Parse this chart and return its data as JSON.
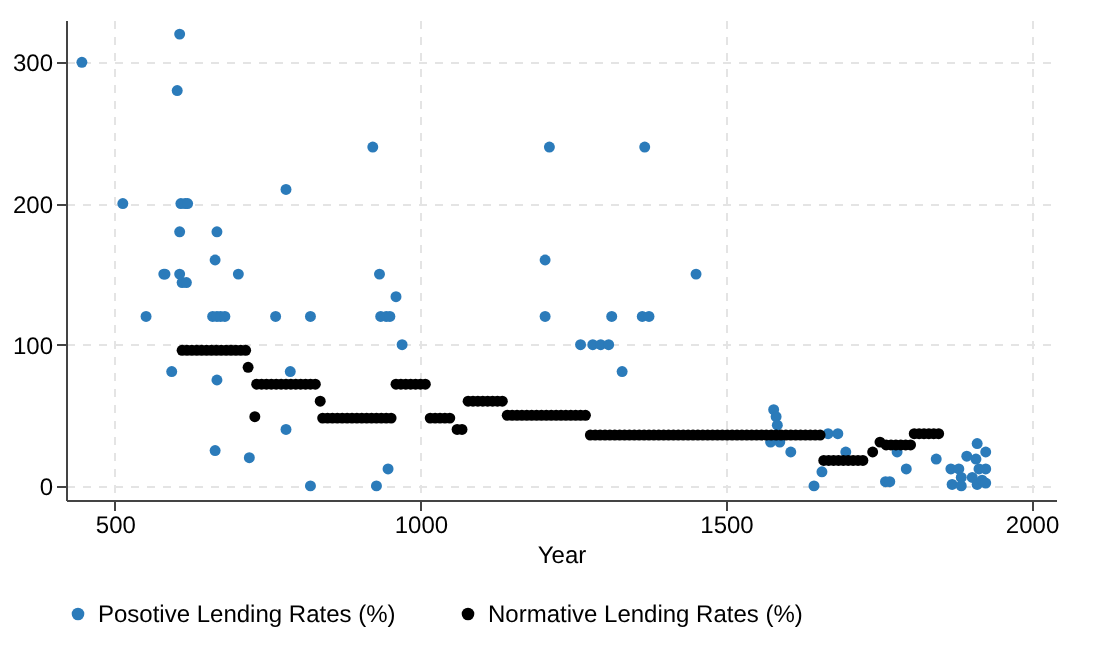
{
  "chart_data": {
    "type": "scatter",
    "xlabel": "Year",
    "xlim": [
      420,
      2040
    ],
    "xticks": [
      500,
      1000,
      1500,
      2000
    ],
    "ylim": [
      -10,
      330
    ],
    "yticks": [
      0,
      100,
      200,
      300
    ],
    "grid": true,
    "legend": "bottom",
    "marker": "circle",
    "series": [
      {
        "name": "Posotive Lending Rates (%)",
        "color": "#2b7bba",
        "x": [
          446,
          513,
          551,
          580,
          582,
          593,
          602,
          606,
          606,
          606,
          610,
          617,
          608,
          615,
          619,
          664,
          667,
          660,
          667,
          673,
          680,
          667,
          664,
          702,
          720,
          763,
          780,
          780,
          787,
          820,
          820,
          922,
          928,
          933,
          935,
          944,
          950,
          947,
          960,
          970,
          1211,
          1204,
          1204,
          1262,
          1282,
          1295,
          1308,
          1313,
          1330,
          1367,
          1363,
          1374,
          1451,
          1578,
          1582,
          1584,
          1573,
          1588,
          1606,
          1644,
          1657,
          1667,
          1683,
          1696,
          1761,
          1768,
          1780,
          1795,
          1844,
          1868,
          1870,
          1881,
          1885,
          1885,
          1894,
          1903,
          1909,
          1911,
          1914,
          1911,
          1919,
          1925,
          1925,
          1925
        ],
        "values": [
          300,
          200,
          120,
          150,
          150,
          81,
          280,
          320,
          180,
          150,
          144,
          144,
          200,
          200,
          200,
          160,
          180,
          120,
          120,
          120,
          120,
          75,
          25,
          150,
          20,
          120,
          210,
          40,
          81,
          120,
          0,
          240,
          0,
          150,
          120,
          120,
          120,
          12,
          134,
          100,
          240,
          160,
          120,
          100,
          100,
          100,
          100,
          120,
          81,
          240,
          120,
          120,
          150,
          54,
          49,
          43,
          31,
          31,
          24,
          0,
          10,
          37,
          37,
          24,
          3,
          3,
          24,
          12,
          19,
          12,
          1,
          12,
          6,
          0,
          21,
          6,
          19,
          30,
          12,
          1,
          4,
          24,
          12,
          2
        ]
      },
      {
        "name": "Normative Lending Rates (%)",
        "color": "#000000",
        "x": [
          610,
          618,
          626,
          634,
          642,
          650,
          658,
          666,
          674,
          682,
          690,
          698,
          706,
          714,
          718,
          729,
          732,
          740,
          748,
          756,
          764,
          772,
          780,
          788,
          796,
          804,
          812,
          820,
          828,
          836,
          840,
          848,
          856,
          864,
          872,
          880,
          888,
          896,
          904,
          912,
          920,
          928,
          936,
          944,
          952,
          960,
          968,
          976,
          984,
          992,
          1000,
          1008,
          1016,
          1024,
          1032,
          1040,
          1048,
          1060,
          1068,
          1078,
          1086,
          1094,
          1102,
          1110,
          1118,
          1126,
          1134,
          1142,
          1150,
          1158,
          1166,
          1174,
          1182,
          1190,
          1198,
          1206,
          1214,
          1222,
          1230,
          1238,
          1246,
          1254,
          1262,
          1270,
          1278,
          1286,
          1294,
          1302,
          1310,
          1318,
          1326,
          1334,
          1342,
          1350,
          1358,
          1366,
          1374,
          1382,
          1390,
          1398,
          1406,
          1414,
          1422,
          1430,
          1438,
          1446,
          1454,
          1462,
          1470,
          1478,
          1486,
          1494,
          1502,
          1510,
          1518,
          1526,
          1534,
          1542,
          1550,
          1558,
          1566,
          1574,
          1582,
          1590,
          1598,
          1606,
          1614,
          1622,
          1630,
          1638,
          1646,
          1654,
          1660,
          1668,
          1676,
          1684,
          1692,
          1700,
          1708,
          1716,
          1724,
          1740,
          1752,
          1762,
          1770,
          1778,
          1786,
          1794,
          1802,
          1808,
          1816,
          1824,
          1832,
          1840,
          1848
        ],
        "values": [
          96,
          96,
          96,
          96,
          96,
          96,
          96,
          96,
          96,
          96,
          96,
          96,
          96,
          96,
          84,
          49,
          72,
          72,
          72,
          72,
          72,
          72,
          72,
          72,
          72,
          72,
          72,
          72,
          72,
          60,
          48,
          48,
          48,
          48,
          48,
          48,
          48,
          48,
          48,
          48,
          48,
          48,
          48,
          48,
          48,
          72,
          72,
          72,
          72,
          72,
          72,
          72,
          48,
          48,
          48,
          48,
          48,
          40,
          40,
          60,
          60,
          60,
          60,
          60,
          60,
          60,
          60,
          50,
          50,
          50,
          50,
          50,
          50,
          50,
          50,
          50,
          50,
          50,
          50,
          50,
          50,
          50,
          50,
          50,
          36,
          36,
          36,
          36,
          36,
          36,
          36,
          36,
          36,
          36,
          36,
          36,
          36,
          36,
          36,
          36,
          36,
          36,
          36,
          36,
          36,
          36,
          36,
          36,
          36,
          36,
          36,
          36,
          36,
          36,
          36,
          36,
          36,
          36,
          36,
          36,
          36,
          36,
          36,
          36,
          36,
          36,
          36,
          36,
          36,
          36,
          36,
          36,
          18,
          18,
          18,
          18,
          18,
          18,
          18,
          18,
          18,
          24,
          31,
          29,
          29,
          29,
          29,
          29,
          29,
          37,
          37,
          37,
          37,
          37,
          37
        ]
      }
    ]
  }
}
